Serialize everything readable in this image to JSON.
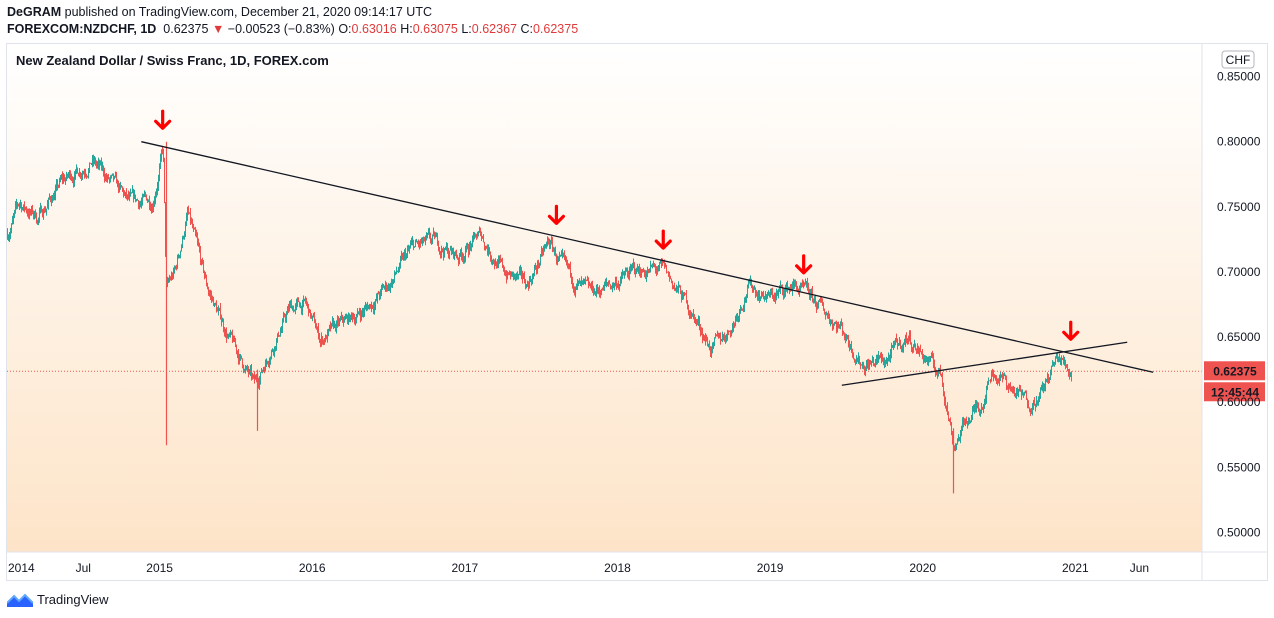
{
  "header": {
    "publisher": "DeGRAM",
    "published_text": " published on TradingView.com, December 21, 2020 09:14:17 UTC",
    "symbol": "FOREXCOM:NZDCHF, 1D",
    "last": "0.62375",
    "change_icon": "down-triangle-icon",
    "change": "−0.00523 (−0.83%)",
    "o_label": "O:",
    "o_value": "0.63016",
    "h_label": "H:",
    "h_value": "0.63075",
    "l_label": "L:",
    "l_value": "0.62367",
    "c_label": "C:",
    "c_value": "0.62375"
  },
  "footer": {
    "brand": "TradingView",
    "logo_icon": "tradingview-logo-icon"
  },
  "colors": {
    "up": "#26a69a",
    "down": "#ef5350",
    "arrow": "#ff0000",
    "price_label": "#ef5350",
    "background_top": "#ffffff",
    "background_bottom": "#fde4c8"
  },
  "chart_data": {
    "type": "candlestick",
    "title": "New Zealand Dollar / Swiss Franc, 1D, FOREX.com",
    "currency": "CHF",
    "y_ticks": [
      "0.85000",
      "0.80000",
      "0.75000",
      "0.70000",
      "0.65000",
      "0.60000",
      "0.55000",
      "0.50000"
    ],
    "x_ticks": [
      "2014",
      "Jul",
      "2015",
      "2016",
      "2017",
      "2018",
      "2019",
      "2020",
      "2021",
      "Jun"
    ],
    "ylim": [
      0.485,
      0.875
    ],
    "xlim": [
      2014.0,
      2021.83
    ],
    "last_price": 0.62375,
    "last_price_label": "0.62375",
    "countdown_label": "12:45:44",
    "price_path": [
      [
        2014.0,
        0.73
      ],
      [
        2014.08,
        0.752
      ],
      [
        2014.2,
        0.742
      ],
      [
        2014.35,
        0.768
      ],
      [
        2014.55,
        0.786
      ],
      [
        2014.65,
        0.772
      ],
      [
        2014.8,
        0.752
      ],
      [
        2014.95,
        0.755
      ],
      [
        2015.02,
        0.795
      ],
      [
        2015.04,
        0.685
      ],
      [
        2015.1,
        0.7
      ],
      [
        2015.18,
        0.745
      ],
      [
        2015.3,
        0.69
      ],
      [
        2015.45,
        0.65
      ],
      [
        2015.62,
        0.612
      ],
      [
        2015.72,
        0.64
      ],
      [
        2015.85,
        0.672
      ],
      [
        2015.95,
        0.675
      ],
      [
        2016.05,
        0.648
      ],
      [
        2016.2,
        0.66
      ],
      [
        2016.35,
        0.672
      ],
      [
        2016.5,
        0.69
      ],
      [
        2016.65,
        0.718
      ],
      [
        2016.8,
        0.722
      ],
      [
        2016.95,
        0.712
      ],
      [
        2017.1,
        0.728
      ],
      [
        2017.25,
        0.7
      ],
      [
        2017.4,
        0.69
      ],
      [
        2017.55,
        0.722
      ],
      [
        2017.65,
        0.7
      ],
      [
        2017.8,
        0.682
      ],
      [
        2017.95,
        0.69
      ],
      [
        2018.1,
        0.7
      ],
      [
        2018.2,
        0.702
      ],
      [
        2018.3,
        0.7
      ],
      [
        2018.45,
        0.676
      ],
      [
        2018.62,
        0.64
      ],
      [
        2018.75,
        0.66
      ],
      [
        2018.85,
        0.69
      ],
      [
        2019.0,
        0.68
      ],
      [
        2019.15,
        0.69
      ],
      [
        2019.3,
        0.675
      ],
      [
        2019.45,
        0.66
      ],
      [
        2019.6,
        0.63
      ],
      [
        2019.75,
        0.632
      ],
      [
        2019.9,
        0.65
      ],
      [
        2020.0,
        0.636
      ],
      [
        2020.12,
        0.62
      ],
      [
        2020.2,
        0.568
      ],
      [
        2020.28,
        0.585
      ],
      [
        2020.38,
        0.6
      ],
      [
        2020.45,
        0.625
      ],
      [
        2020.58,
        0.61
      ],
      [
        2020.68,
        0.6
      ],
      [
        2020.78,
        0.608
      ],
      [
        2020.88,
        0.634
      ],
      [
        2020.97,
        0.6238
      ]
    ],
    "spikes": [
      {
        "x": 2015.04,
        "high": 0.8,
        "low": 0.567
      },
      {
        "x": 2015.64,
        "high": 0.625,
        "low": 0.578
      },
      {
        "x": 2020.2,
        "high": 0.58,
        "low": 0.53
      }
    ],
    "annotations": {
      "resistance_line": [
        [
          2014.88,
          0.8
        ],
        [
          2021.51,
          0.623
        ]
      ],
      "support_line": [
        [
          2019.47,
          0.613
        ],
        [
          2021.34,
          0.646
        ]
      ],
      "arrows": [
        {
          "x": 2015.02,
          "y": 0.808
        },
        {
          "x": 2017.6,
          "y": 0.735
        },
        {
          "x": 2018.3,
          "y": 0.716
        },
        {
          "x": 2019.22,
          "y": 0.697
        },
        {
          "x": 2020.97,
          "y": 0.646
        }
      ]
    }
  }
}
